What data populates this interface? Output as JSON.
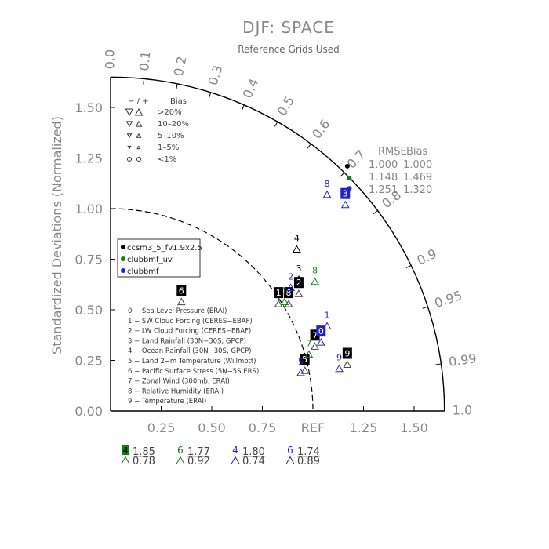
{
  "chart_data": {
    "type": "scatter",
    "subtype": "taylor-diagram",
    "title": "DJF: SPACE",
    "subtitle": "Reference Grids Used",
    "ylabel": "Standardized Deviations (Normalized)",
    "reference_label": "REF",
    "x_ticks": [
      "0.25",
      "0.50",
      "0.75",
      "1.25",
      "1.50"
    ],
    "y_ticks": [
      "0.00",
      "0.25",
      "0.50",
      "0.75",
      "1.00",
      "1.25",
      "1.50"
    ],
    "corr_ticks": [
      "0.0",
      "0.1",
      "0.2",
      "0.3",
      "0.4",
      "0.5",
      "0.6",
      "0.7",
      "0.8",
      "0.9",
      "0.95",
      "0.99",
      "1.0"
    ],
    "xlim": [
      0,
      1.65
    ],
    "ylim": [
      0,
      1.65
    ],
    "colors": {
      "axis": "#000000",
      "text": "#888888",
      "ccsm": "#000000",
      "uv": "#1a7a1a",
      "clubb": "#2222cc"
    },
    "bias_legend": {
      "header": [
        "− / +",
        "Bias"
      ],
      "rows": [
        ">20%",
        "10–20%",
        "5–10%",
        "1–5%",
        "<1%"
      ]
    },
    "rmse_table": {
      "header": [
        "RMSE",
        "Bias"
      ],
      "rows": [
        [
          "1.000",
          "1.000"
        ],
        [
          "1.148",
          "1.469"
        ],
        [
          "1.251",
          "1.320"
        ]
      ]
    },
    "series": [
      {
        "name": "ccsm3_5_fv1.9x2.5",
        "color": "#000000"
      },
      {
        "name": "clubbmf_uv",
        "color": "#1a7a1a"
      },
      {
        "name": "clubbmf",
        "color": "#2222cc"
      }
    ],
    "variables": [
      "0 − Sea Level Pressure (ERAI)",
      "1 − SW Cloud Forcing (CERES−EBAF)",
      "2 − LW Cloud Forcing (CERES−EBAF)",
      "3 − Land Rainfall (30N−30S, GPCP)",
      "4 − Ocean Rainfall (30N−30S, GPCP)",
      "5 − Land 2−m Temperature (Willmott)",
      "6 − Pacific Surface Stress (5N−5S,ERS)",
      "7 − Zonal Wind (300mb, ERAI)",
      "8 − Relative Humidity (ERAI)",
      "9 − Temperature (ERAI)"
    ],
    "points": [
      {
        "series": 0,
        "label": "0",
        "x": 1.17,
        "y": 1.21,
        "marker": "dot"
      },
      {
        "series": 1,
        "label": "0",
        "x": 1.18,
        "y": 1.15,
        "marker": "dot"
      },
      {
        "series": 2,
        "label": "0",
        "x": 1.18,
        "y": 1.1,
        "marker": "dot"
      },
      {
        "series": 0,
        "label": "1",
        "x": 0.83,
        "y": 0.55,
        "marker": "box"
      },
      {
        "series": 0,
        "label": "8",
        "x": 0.88,
        "y": 0.55,
        "marker": "box"
      },
      {
        "series": 0,
        "label": "2",
        "x": 0.93,
        "y": 0.6,
        "marker": "box"
      },
      {
        "series": 0,
        "label": "6",
        "x": 0.35,
        "y": 0.56,
        "marker": "box"
      },
      {
        "series": 0,
        "label": "7",
        "x": 1.01,
        "y": 0.34,
        "marker": "box"
      },
      {
        "series": 0,
        "label": "9",
        "x": 1.17,
        "y": 0.25,
        "marker": "box"
      },
      {
        "series": 0,
        "label": "5",
        "x": 0.96,
        "y": 0.22,
        "marker": "box"
      },
      {
        "series": 2,
        "label": "3",
        "x": 1.16,
        "y": 1.04,
        "marker": "box"
      },
      {
        "series": 2,
        "label": "0",
        "x": 1.04,
        "y": 0.36,
        "marker": "box"
      },
      {
        "series": 0,
        "label": "4",
        "x": 0.92,
        "y": 0.82,
        "marker": "text"
      },
      {
        "series": 0,
        "label": "3",
        "x": 0.93,
        "y": 0.67,
        "marker": "text"
      },
      {
        "series": 2,
        "label": "2",
        "x": 0.89,
        "y": 0.63,
        "marker": "text"
      },
      {
        "series": 1,
        "label": "8",
        "x": 1.01,
        "y": 0.66,
        "marker": "text"
      },
      {
        "series": 2,
        "label": "8",
        "x": 1.07,
        "y": 1.09,
        "marker": "text"
      },
      {
        "series": 2,
        "label": "1",
        "x": 1.07,
        "y": 0.44,
        "marker": "text"
      },
      {
        "series": 2,
        "label": "9",
        "x": 1.13,
        "y": 0.23,
        "marker": "text"
      },
      {
        "series": 1,
        "label": "1",
        "x": 0.86,
        "y": 0.56,
        "marker": "text"
      },
      {
        "series": 1,
        "label": "7",
        "x": 0.98,
        "y": 0.3,
        "marker": "text"
      },
      {
        "series": 2,
        "label": "5",
        "x": 0.94,
        "y": 0.21,
        "marker": "text"
      }
    ],
    "bias_summaries": [
      {
        "label": "4",
        "value": "1.85",
        "ratio": "0.78",
        "color": "#1a7a1a",
        "boxed": true
      },
      {
        "label": "6",
        "value": "1.77",
        "ratio": "0.92",
        "color": "#1a7a1a",
        "boxed": false
      },
      {
        "label": "4",
        "value": "1.80",
        "ratio": "0.74",
        "color": "#2222cc",
        "boxed": false
      },
      {
        "label": "6",
        "value": "1.74",
        "ratio": "0.89",
        "color": "#2222cc",
        "boxed": false
      }
    ]
  }
}
